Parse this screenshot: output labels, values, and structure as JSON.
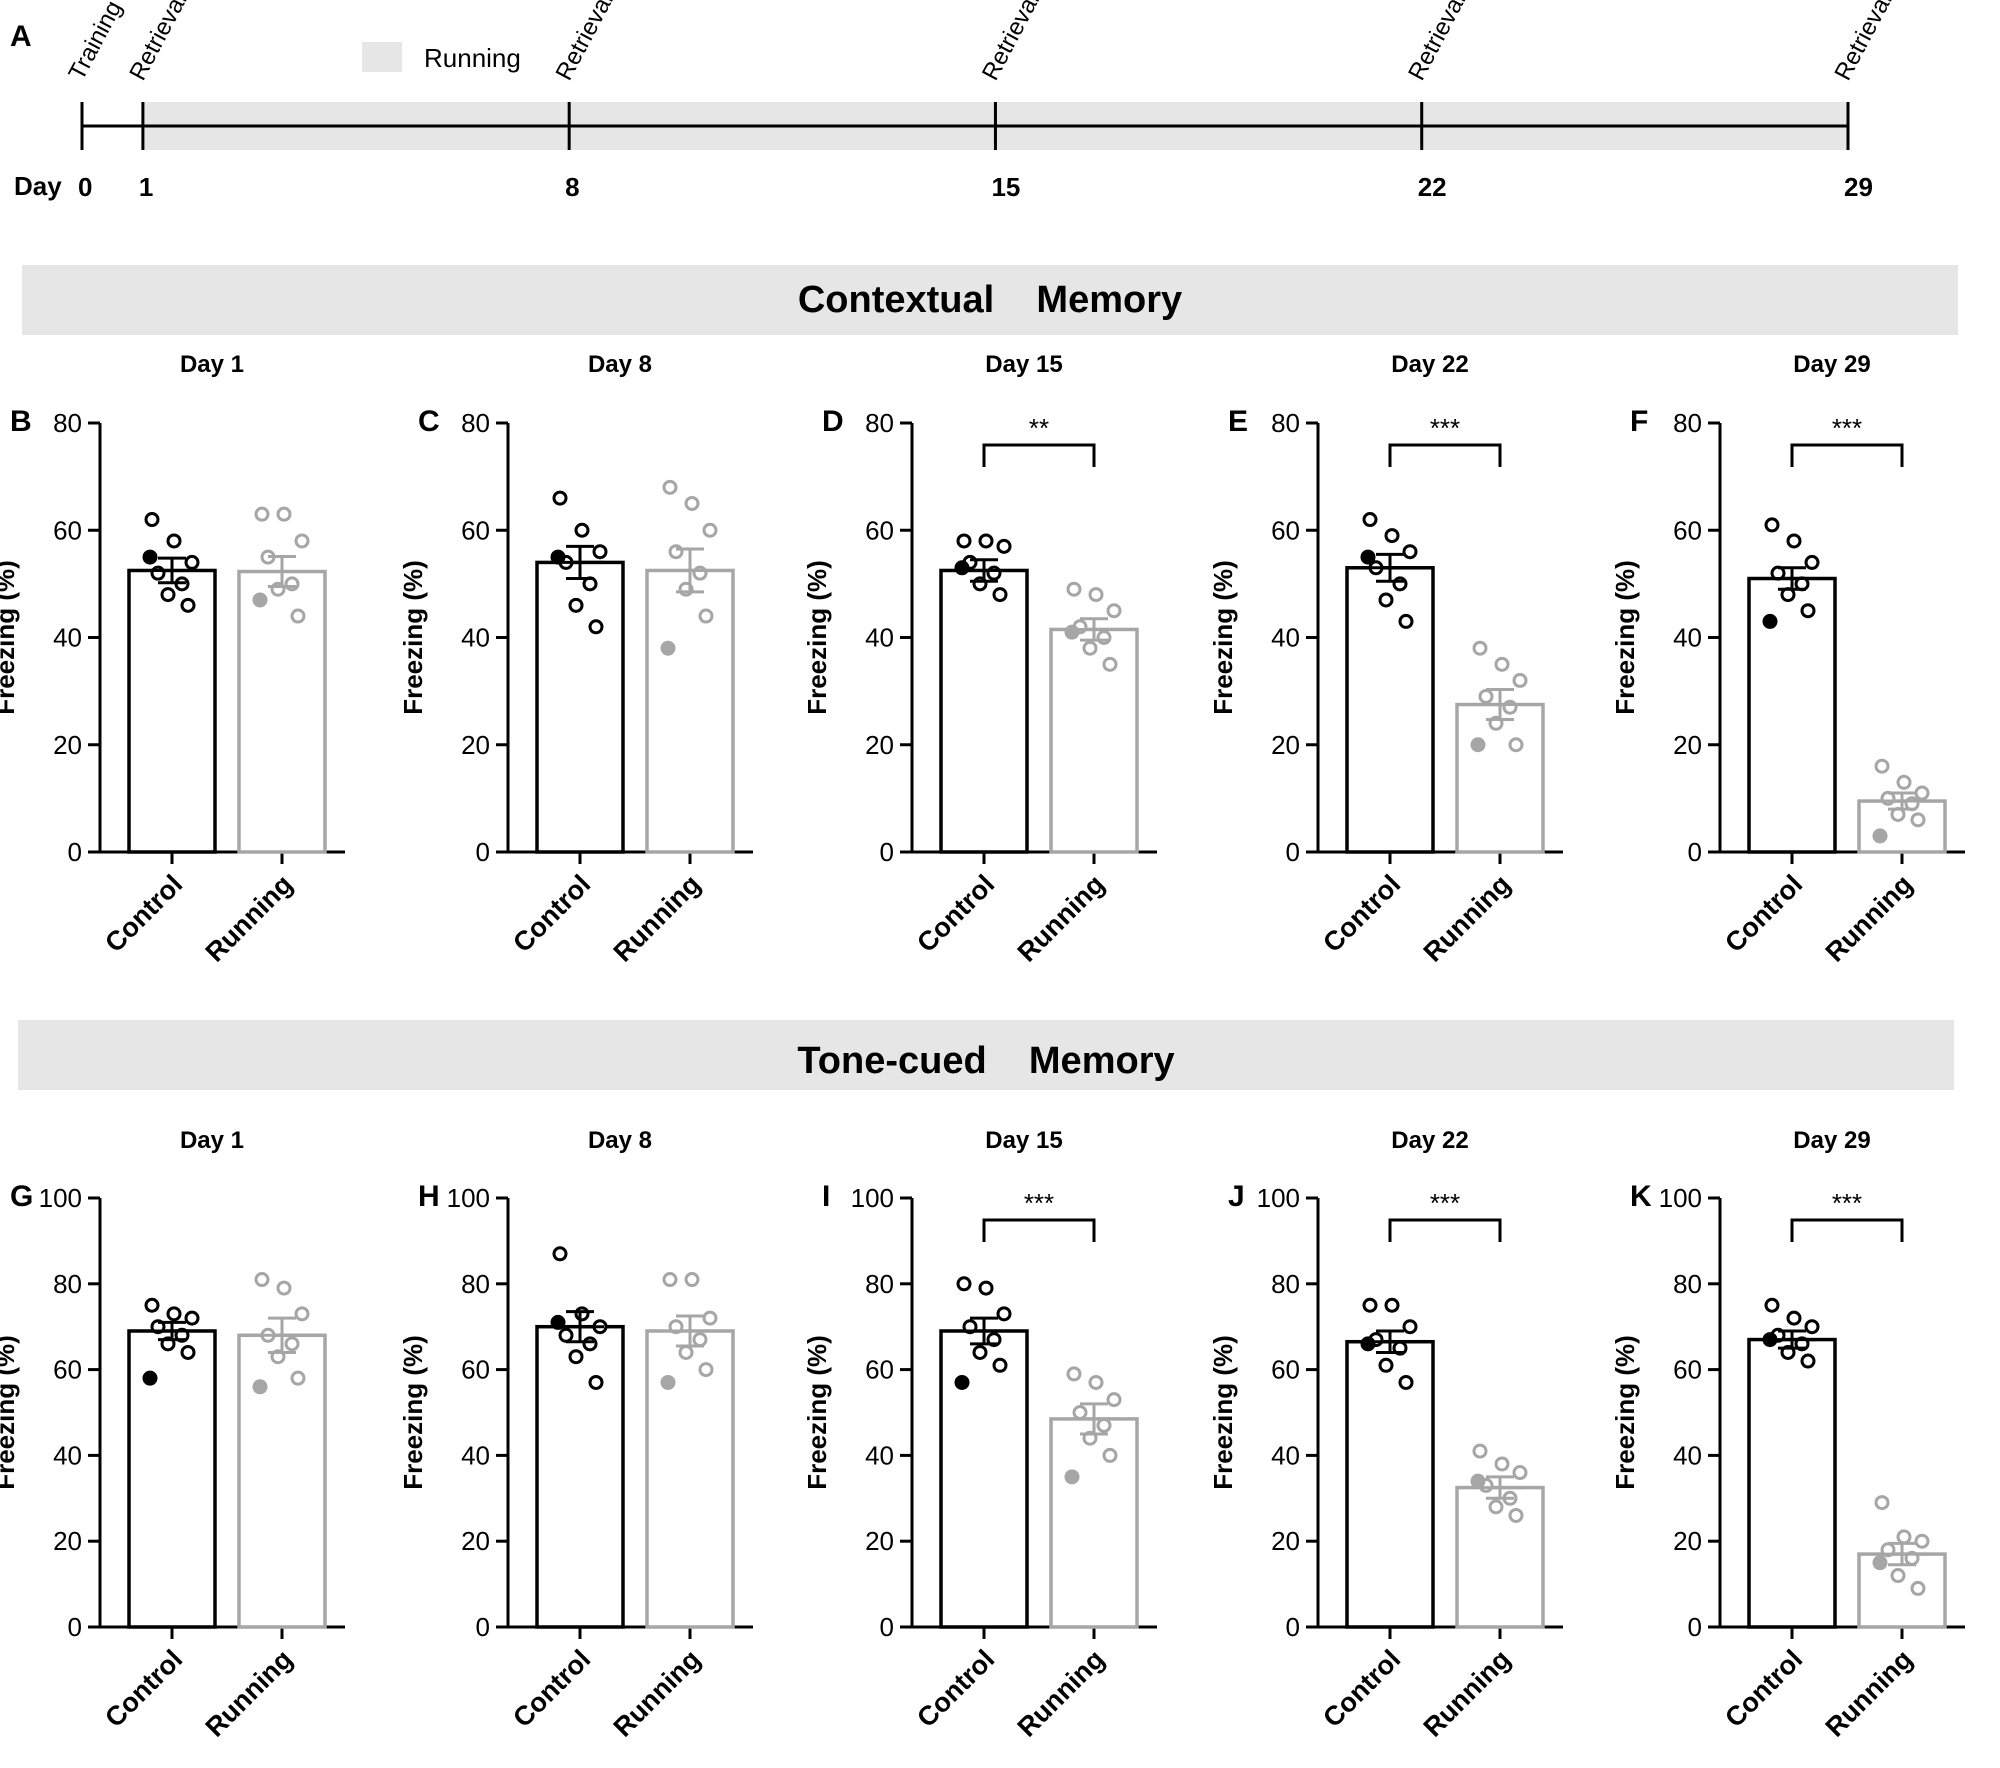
{
  "colors": {
    "control": "#000000",
    "running": "#a6a6a6",
    "banner": "#e6e6e6"
  },
  "timeline": {
    "panel_letter": "A",
    "day_label": "Day",
    "legend_label": "Running",
    "events": [
      {
        "day": 0,
        "day_text": "0",
        "label": "Training"
      },
      {
        "day": 1,
        "day_text": "1",
        "label": "Retrieval"
      },
      {
        "day": 8,
        "day_text": "8",
        "label": "Retrieval"
      },
      {
        "day": 15,
        "day_text": "15",
        "label": "Retrieval"
      },
      {
        "day": 22,
        "day_text": "22",
        "label": "Retrieval"
      },
      {
        "day": 29,
        "day_text": "29",
        "label": "Retrieval"
      }
    ],
    "running_range": [
      1,
      29
    ]
  },
  "sections": [
    {
      "title": "Contextual    Memory"
    },
    {
      "title": "Tone-cued    Memory"
    }
  ],
  "chart_data": [
    {
      "panel": "B",
      "type": "bar",
      "title": "Day 1",
      "ylabel": "Freezing (%)",
      "ylim": [
        0,
        80
      ],
      "yticks": [
        0,
        20,
        40,
        60,
        80
      ],
      "categories": [
        "Control",
        "Running"
      ],
      "values": [
        52.5,
        52.3
      ],
      "sem": [
        2.3,
        2.8
      ],
      "significance": "",
      "points": [
        [
          62,
          58,
          54,
          52,
          50,
          48,
          46,
          55
        ],
        [
          63,
          63,
          58,
          55,
          50,
          49,
          44,
          47
        ]
      ]
    },
    {
      "panel": "C",
      "type": "bar",
      "title": "Day 8",
      "ylabel": "Freezing (%)",
      "ylim": [
        0,
        80
      ],
      "yticks": [
        0,
        20,
        40,
        60,
        80
      ],
      "categories": [
        "Control",
        "Running"
      ],
      "values": [
        54,
        52.5
      ],
      "sem": [
        3.0,
        4.0
      ],
      "significance": "",
      "points": [
        [
          66,
          60,
          56,
          54,
          50,
          46,
          42,
          55
        ],
        [
          68,
          65,
          60,
          56,
          52,
          49,
          44,
          38
        ]
      ]
    },
    {
      "panel": "D",
      "type": "bar",
      "title": "Day 15",
      "ylabel": "Freezing (%)",
      "ylim": [
        0,
        80
      ],
      "yticks": [
        0,
        20,
        40,
        60,
        80
      ],
      "categories": [
        "Control",
        "Running"
      ],
      "values": [
        52.5,
        41.5
      ],
      "sem": [
        2.0,
        2.0
      ],
      "significance": "**",
      "points": [
        [
          58,
          58,
          57,
          54,
          52,
          50,
          48,
          53
        ],
        [
          49,
          48,
          45,
          42,
          40,
          38,
          35,
          41
        ]
      ]
    },
    {
      "panel": "E",
      "type": "bar",
      "title": "Day 22",
      "ylabel": "Freezing (%)",
      "ylim": [
        0,
        80
      ],
      "yticks": [
        0,
        20,
        40,
        60,
        80
      ],
      "categories": [
        "Control",
        "Running"
      ],
      "values": [
        53,
        27.5
      ],
      "sem": [
        2.5,
        2.8
      ],
      "significance": "***",
      "points": [
        [
          62,
          59,
          56,
          53,
          50,
          47,
          43,
          55
        ],
        [
          38,
          35,
          32,
          29,
          27,
          24,
          20,
          20
        ]
      ]
    },
    {
      "panel": "F",
      "type": "bar",
      "title": "Day 29",
      "ylabel": "Freezing (%)",
      "ylim": [
        0,
        80
      ],
      "yticks": [
        0,
        20,
        40,
        60,
        80
      ],
      "categories": [
        "Control",
        "Running"
      ],
      "values": [
        51,
        9.5
      ],
      "sem": [
        2.0,
        1.5
      ],
      "significance": "***",
      "points": [
        [
          61,
          58,
          54,
          52,
          50,
          48,
          45,
          43
        ],
        [
          16,
          13,
          11,
          10,
          9,
          7,
          6,
          3
        ]
      ]
    },
    {
      "panel": "G",
      "type": "bar",
      "title": "Day 1",
      "ylabel": "Freezing (%)",
      "ylim": [
        0,
        100
      ],
      "yticks": [
        0,
        20,
        40,
        60,
        80,
        100
      ],
      "categories": [
        "Control",
        "Running"
      ],
      "values": [
        69,
        68
      ],
      "sem": [
        2.0,
        4.0
      ],
      "significance": "",
      "points": [
        [
          75,
          73,
          72,
          70,
          68,
          66,
          64,
          58
        ],
        [
          81,
          79,
          73,
          68,
          66,
          63,
          58,
          56
        ]
      ]
    },
    {
      "panel": "H",
      "type": "bar",
      "title": "Day 8",
      "ylabel": "Freezing (%)",
      "ylim": [
        0,
        100
      ],
      "yticks": [
        0,
        20,
        40,
        60,
        80,
        100
      ],
      "categories": [
        "Control",
        "Running"
      ],
      "values": [
        70,
        69
      ],
      "sem": [
        3.5,
        3.5
      ],
      "significance": "",
      "points": [
        [
          87,
          73,
          70,
          68,
          66,
          63,
          57,
          71
        ],
        [
          81,
          81,
          72,
          70,
          67,
          64,
          60,
          57
        ]
      ]
    },
    {
      "panel": "I",
      "type": "bar",
      "title": "Day 15",
      "ylabel": "Freezing (%)",
      "ylim": [
        0,
        100
      ],
      "yticks": [
        0,
        20,
        40,
        60,
        80,
        100
      ],
      "categories": [
        "Control",
        "Running"
      ],
      "values": [
        69,
        48.5
      ],
      "sem": [
        3.0,
        3.5
      ],
      "significance": "***",
      "points": [
        [
          80,
          79,
          73,
          70,
          67,
          64,
          61,
          57
        ],
        [
          59,
          57,
          53,
          50,
          47,
          44,
          40,
          35
        ]
      ]
    },
    {
      "panel": "J",
      "type": "bar",
      "title": "Day 22",
      "ylabel": "Freezing (%)",
      "ylim": [
        0,
        100
      ],
      "yticks": [
        0,
        20,
        40,
        60,
        80,
        100
      ],
      "categories": [
        "Control",
        "Running"
      ],
      "values": [
        66.5,
        32.5
      ],
      "sem": [
        2.5,
        2.5
      ],
      "significance": "***",
      "points": [
        [
          75,
          75,
          70,
          67,
          65,
          61,
          57,
          66
        ],
        [
          41,
          38,
          36,
          33,
          30,
          28,
          26,
          34
        ]
      ]
    },
    {
      "panel": "K",
      "type": "bar",
      "title": "Day 29",
      "ylabel": "Freezing (%)",
      "ylim": [
        0,
        100
      ],
      "yticks": [
        0,
        20,
        40,
        60,
        80,
        100
      ],
      "categories": [
        "Control",
        "Running"
      ],
      "values": [
        67,
        17
      ],
      "sem": [
        2.0,
        2.5
      ],
      "significance": "***",
      "points": [
        [
          75,
          72,
          70,
          68,
          66,
          64,
          62,
          67
        ],
        [
          29,
          21,
          20,
          18,
          16,
          12,
          9,
          15
        ]
      ]
    }
  ]
}
